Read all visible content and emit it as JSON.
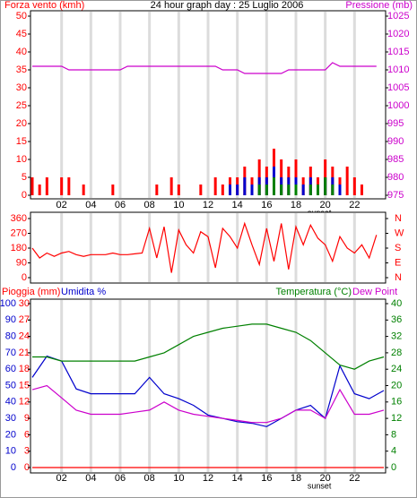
{
  "chart_data": [
    {
      "type": "bar",
      "title": "24 hour graph day : 25 Luglio 2006",
      "y_label": "Forza vento (kmh)",
      "y2_label": "Pressione (mb)",
      "x": [
        0,
        0.5,
        1,
        1.5,
        2,
        2.5,
        3,
        3.5,
        4,
        4.5,
        5,
        5.5,
        6,
        6.5,
        7,
        7.5,
        8,
        8.5,
        9,
        9.5,
        10,
        10.5,
        11,
        11.5,
        12,
        12.5,
        13,
        13.5,
        14,
        14.5,
        15,
        15.5,
        16,
        16.5,
        17,
        17.5,
        18,
        18.5,
        19,
        19.5,
        20,
        20.5,
        21,
        21.5,
        22,
        22.5,
        23,
        23.5
      ],
      "xlim": [
        0,
        24
      ],
      "xticks": [
        {
          "value": 2,
          "label": "02"
        },
        {
          "value": 4,
          "label": "04"
        },
        {
          "value": 6,
          "label": "06"
        },
        {
          "value": 8,
          "label": "08"
        },
        {
          "value": 10,
          "label": "10"
        },
        {
          "value": 12,
          "label": "12"
        },
        {
          "value": 14,
          "label": "14"
        },
        {
          "value": 16,
          "label": "16"
        },
        {
          "value": 18,
          "label": "18"
        },
        {
          "value": 20,
          "label": "20"
        },
        {
          "value": 22,
          "label": "22"
        }
      ],
      "ylim": [
        0,
        50
      ],
      "yticks": [
        0,
        5,
        10,
        15,
        20,
        25,
        30,
        35,
        40,
        45,
        50
      ],
      "y2lim": [
        975,
        1025
      ],
      "y2ticks": [
        975,
        980,
        985,
        990,
        995,
        1000,
        1005,
        1010,
        1015,
        1020,
        1025
      ],
      "grid": true,
      "sunset": {
        "value": 19.6,
        "label": "sunset"
      },
      "series": [
        {
          "type": "bar",
          "color": "#ff0000",
          "values": [
            5,
            3,
            5,
            0,
            5,
            5,
            0,
            3,
            0,
            0,
            0,
            3,
            0,
            0,
            0,
            0,
            0,
            3,
            0,
            5,
            3,
            0,
            0,
            3,
            0,
            5,
            3,
            5,
            5,
            8,
            5,
            10,
            8,
            13,
            10,
            8,
            10,
            5,
            8,
            5,
            10,
            8,
            5,
            8,
            5,
            3,
            0,
            0
          ]
        },
        {
          "type": "bar",
          "color": "#0000cc",
          "values": [
            0,
            0,
            0,
            0,
            0,
            0,
            0,
            0,
            0,
            0,
            0,
            0,
            0,
            0,
            0,
            0,
            0,
            0,
            0,
            0,
            0,
            0,
            0,
            0,
            0,
            0,
            0,
            3,
            3,
            5,
            3,
            5,
            5,
            8,
            5,
            5,
            5,
            3,
            5,
            3,
            5,
            5,
            3,
            0,
            0,
            0,
            0,
            0
          ]
        },
        {
          "type": "bar",
          "color": "#008000",
          "values": [
            0,
            0,
            0,
            0,
            0,
            0,
            0,
            0,
            0,
            0,
            0,
            0,
            0,
            0,
            0,
            0,
            0,
            0,
            0,
            0,
            0,
            0,
            0,
            0,
            0,
            0,
            0,
            0,
            0,
            0,
            0,
            3,
            3,
            5,
            3,
            3,
            3,
            0,
            3,
            3,
            5,
            3,
            0,
            0,
            0,
            0,
            0,
            0
          ]
        },
        {
          "type": "line",
          "color": "#cc00cc",
          "axis": "y2",
          "values": [
            1011,
            1011,
            1011,
            1011,
            1011,
            1010,
            1010,
            1010,
            1010,
            1010,
            1010,
            1010,
            1010,
            1011,
            1011,
            1011,
            1011,
            1011,
            1011,
            1011,
            1011,
            1011,
            1011,
            1011,
            1011,
            1011,
            1010,
            1010,
            1010,
            1009,
            1009,
            1009,
            1009,
            1009,
            1009,
            1010,
            1010,
            1010,
            1010,
            1010,
            1010,
            1012,
            1011,
            1011,
            1011,
            1011,
            1011,
            1011
          ]
        }
      ]
    },
    {
      "type": "line",
      "x": [
        0,
        0.5,
        1,
        1.5,
        2,
        2.5,
        3,
        3.5,
        4,
        4.5,
        5,
        5.5,
        6,
        6.5,
        7,
        7.5,
        8,
        8.5,
        9,
        9.5,
        10,
        10.5,
        11,
        11.5,
        12,
        12.5,
        13,
        13.5,
        14,
        14.5,
        15,
        15.5,
        16,
        16.5,
        17,
        17.5,
        18,
        18.5,
        19,
        19.5,
        20,
        20.5,
        21,
        21.5,
        22,
        22.5,
        23,
        23.5
      ],
      "xlim": [
        0,
        24
      ],
      "xticks": [
        {
          "value": 2,
          "label": "02"
        },
        {
          "value": 4,
          "label": "04"
        },
        {
          "value": 6,
          "label": "06"
        },
        {
          "value": 8,
          "label": "08"
        },
        {
          "value": 10,
          "label": "10"
        },
        {
          "value": 12,
          "label": "12"
        },
        {
          "value": 14,
          "label": "14"
        },
        {
          "value": 16,
          "label": "16"
        },
        {
          "value": 18,
          "label": "18"
        },
        {
          "value": 20,
          "label": "20"
        },
        {
          "value": 22,
          "label": "22"
        }
      ],
      "ylim": [
        0,
        360
      ],
      "yticks": [
        0,
        90,
        180,
        270,
        360
      ],
      "y2lim": [
        0,
        360
      ],
      "y2ticks": [
        {
          "value": 0,
          "label": "N"
        },
        {
          "value": 90,
          "label": "E"
        },
        {
          "value": 180,
          "label": "S"
        },
        {
          "value": 270,
          "label": "W"
        },
        {
          "value": 360,
          "label": "N"
        }
      ],
      "grid": true,
      "series": [
        {
          "color": "#ff0000",
          "values": [
            180,
            120,
            150,
            130,
            150,
            160,
            140,
            130,
            140,
            140,
            140,
            150,
            140,
            140,
            145,
            150,
            300,
            120,
            310,
            30,
            290,
            200,
            150,
            280,
            250,
            60,
            300,
            250,
            180,
            330,
            200,
            80,
            300,
            100,
            330,
            50,
            310,
            200,
            320,
            240,
            200,
            100,
            250,
            180,
            150,
            200,
            120,
            260
          ]
        }
      ]
    },
    {
      "type": "line",
      "y_label": "Pioggia (mm)",
      "y_label_2": "Umidita %",
      "y2_label": "Temperatura (°C)",
      "y2_label_2": "Dew Point",
      "x": [
        0,
        1,
        2,
        3,
        4,
        5,
        6,
        7,
        8,
        9,
        10,
        11,
        12,
        13,
        14,
        15,
        16,
        17,
        18,
        19,
        20,
        21,
        22,
        23,
        24
      ],
      "xlim": [
        0,
        24
      ],
      "xticks": [
        {
          "value": 2,
          "label": "02"
        },
        {
          "value": 4,
          "label": "04"
        },
        {
          "value": 6,
          "label": "06"
        },
        {
          "value": 8,
          "label": "08"
        },
        {
          "value": 10,
          "label": "10"
        },
        {
          "value": 12,
          "label": "12"
        },
        {
          "value": 14,
          "label": "14"
        },
        {
          "value": 16,
          "label": "16"
        },
        {
          "value": 18,
          "label": "18"
        },
        {
          "value": 20,
          "label": "20"
        },
        {
          "value": 22,
          "label": "22"
        }
      ],
      "ylim": [
        0,
        100
      ],
      "yticks": [
        0,
        10,
        20,
        30,
        40,
        50,
        60,
        70,
        80,
        90,
        100
      ],
      "y3lim": [
        0,
        30
      ],
      "y3ticks": [
        0,
        3,
        6,
        9,
        12,
        15,
        18,
        21,
        24,
        27,
        30
      ],
      "y2lim": [
        0,
        40
      ],
      "y2ticks": [
        0,
        4,
        8,
        12,
        16,
        20,
        24,
        28,
        32,
        36,
        40
      ],
      "grid": true,
      "sunset": {
        "value": 19.6,
        "label": "sunset"
      },
      "series": [
        {
          "color": "#0000cc",
          "values": [
            55,
            68,
            65,
            48,
            45,
            45,
            45,
            45,
            55,
            45,
            42,
            38,
            32,
            30,
            28,
            27,
            25,
            30,
            35,
            38,
            30,
            62,
            45,
            42,
            47
          ]
        },
        {
          "color": "#008000",
          "axis": "y2",
          "values": [
            27,
            27,
            26,
            26,
            26,
            26,
            26,
            26,
            27,
            28,
            30,
            32,
            33,
            34,
            34.5,
            35,
            35,
            34,
            33,
            31,
            28,
            25,
            24,
            26,
            27
          ]
        },
        {
          "color": "#cc00cc",
          "axis": "y2",
          "values": [
            19,
            20,
            17,
            14,
            13,
            13,
            13,
            13.5,
            14,
            16,
            14,
            13,
            12.5,
            12,
            11.5,
            11,
            11,
            12,
            14,
            14,
            12,
            19,
            13,
            13,
            14
          ]
        },
        {
          "color": "#ff0000",
          "axis": "y3",
          "values": [
            0,
            0,
            0,
            0,
            0,
            0,
            0,
            0,
            0,
            0,
            0,
            0,
            0,
            0,
            0,
            0,
            0,
            0,
            0,
            0,
            0,
            0,
            0,
            0,
            0
          ]
        }
      ]
    }
  ]
}
